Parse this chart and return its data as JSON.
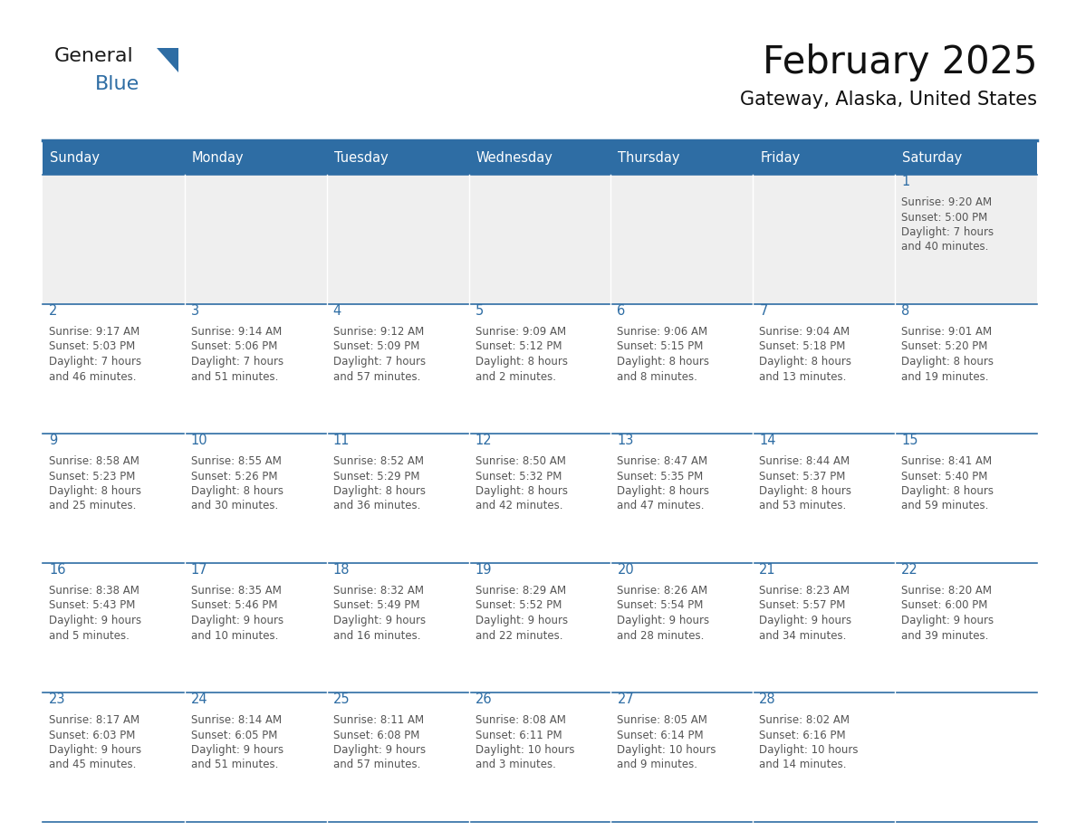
{
  "title": "February 2025",
  "subtitle": "Gateway, Alaska, United States",
  "header_bg": "#2E6DA4",
  "header_text_color": "#FFFFFF",
  "cell_bg_white": "#FFFFFF",
  "cell_bg_gray": "#EFEFEF",
  "day_number_color": "#2E6DA4",
  "cell_text_color": "#555555",
  "border_color": "#2E6DA4",
  "days_of_week": [
    "Sunday",
    "Monday",
    "Tuesday",
    "Wednesday",
    "Thursday",
    "Friday",
    "Saturday"
  ],
  "weeks": [
    [
      {
        "day": 0,
        "text": ""
      },
      {
        "day": 0,
        "text": ""
      },
      {
        "day": 0,
        "text": ""
      },
      {
        "day": 0,
        "text": ""
      },
      {
        "day": 0,
        "text": ""
      },
      {
        "day": 0,
        "text": ""
      },
      {
        "day": 1,
        "text": "Sunrise: 9:20 AM\nSunset: 5:00 PM\nDaylight: 7 hours\nand 40 minutes."
      }
    ],
    [
      {
        "day": 2,
        "text": "Sunrise: 9:17 AM\nSunset: 5:03 PM\nDaylight: 7 hours\nand 46 minutes."
      },
      {
        "day": 3,
        "text": "Sunrise: 9:14 AM\nSunset: 5:06 PM\nDaylight: 7 hours\nand 51 minutes."
      },
      {
        "day": 4,
        "text": "Sunrise: 9:12 AM\nSunset: 5:09 PM\nDaylight: 7 hours\nand 57 minutes."
      },
      {
        "day": 5,
        "text": "Sunrise: 9:09 AM\nSunset: 5:12 PM\nDaylight: 8 hours\nand 2 minutes."
      },
      {
        "day": 6,
        "text": "Sunrise: 9:06 AM\nSunset: 5:15 PM\nDaylight: 8 hours\nand 8 minutes."
      },
      {
        "day": 7,
        "text": "Sunrise: 9:04 AM\nSunset: 5:18 PM\nDaylight: 8 hours\nand 13 minutes."
      },
      {
        "day": 8,
        "text": "Sunrise: 9:01 AM\nSunset: 5:20 PM\nDaylight: 8 hours\nand 19 minutes."
      }
    ],
    [
      {
        "day": 9,
        "text": "Sunrise: 8:58 AM\nSunset: 5:23 PM\nDaylight: 8 hours\nand 25 minutes."
      },
      {
        "day": 10,
        "text": "Sunrise: 8:55 AM\nSunset: 5:26 PM\nDaylight: 8 hours\nand 30 minutes."
      },
      {
        "day": 11,
        "text": "Sunrise: 8:52 AM\nSunset: 5:29 PM\nDaylight: 8 hours\nand 36 minutes."
      },
      {
        "day": 12,
        "text": "Sunrise: 8:50 AM\nSunset: 5:32 PM\nDaylight: 8 hours\nand 42 minutes."
      },
      {
        "day": 13,
        "text": "Sunrise: 8:47 AM\nSunset: 5:35 PM\nDaylight: 8 hours\nand 47 minutes."
      },
      {
        "day": 14,
        "text": "Sunrise: 8:44 AM\nSunset: 5:37 PM\nDaylight: 8 hours\nand 53 minutes."
      },
      {
        "day": 15,
        "text": "Sunrise: 8:41 AM\nSunset: 5:40 PM\nDaylight: 8 hours\nand 59 minutes."
      }
    ],
    [
      {
        "day": 16,
        "text": "Sunrise: 8:38 AM\nSunset: 5:43 PM\nDaylight: 9 hours\nand 5 minutes."
      },
      {
        "day": 17,
        "text": "Sunrise: 8:35 AM\nSunset: 5:46 PM\nDaylight: 9 hours\nand 10 minutes."
      },
      {
        "day": 18,
        "text": "Sunrise: 8:32 AM\nSunset: 5:49 PM\nDaylight: 9 hours\nand 16 minutes."
      },
      {
        "day": 19,
        "text": "Sunrise: 8:29 AM\nSunset: 5:52 PM\nDaylight: 9 hours\nand 22 minutes."
      },
      {
        "day": 20,
        "text": "Sunrise: 8:26 AM\nSunset: 5:54 PM\nDaylight: 9 hours\nand 28 minutes."
      },
      {
        "day": 21,
        "text": "Sunrise: 8:23 AM\nSunset: 5:57 PM\nDaylight: 9 hours\nand 34 minutes."
      },
      {
        "day": 22,
        "text": "Sunrise: 8:20 AM\nSunset: 6:00 PM\nDaylight: 9 hours\nand 39 minutes."
      }
    ],
    [
      {
        "day": 23,
        "text": "Sunrise: 8:17 AM\nSunset: 6:03 PM\nDaylight: 9 hours\nand 45 minutes."
      },
      {
        "day": 24,
        "text": "Sunrise: 8:14 AM\nSunset: 6:05 PM\nDaylight: 9 hours\nand 51 minutes."
      },
      {
        "day": 25,
        "text": "Sunrise: 8:11 AM\nSunset: 6:08 PM\nDaylight: 9 hours\nand 57 minutes."
      },
      {
        "day": 26,
        "text": "Sunrise: 8:08 AM\nSunset: 6:11 PM\nDaylight: 10 hours\nand 3 minutes."
      },
      {
        "day": 27,
        "text": "Sunrise: 8:05 AM\nSunset: 6:14 PM\nDaylight: 10 hours\nand 9 minutes."
      },
      {
        "day": 28,
        "text": "Sunrise: 8:02 AM\nSunset: 6:16 PM\nDaylight: 10 hours\nand 14 minutes."
      },
      {
        "day": 0,
        "text": ""
      }
    ]
  ],
  "logo_text_general": "General",
  "logo_text_blue": "Blue",
  "logo_color_general": "#1a1a1a",
  "logo_color_blue": "#2E6DA4",
  "logo_triangle_color": "#2E6DA4",
  "fig_width": 11.88,
  "fig_height": 9.18,
  "dpi": 100
}
